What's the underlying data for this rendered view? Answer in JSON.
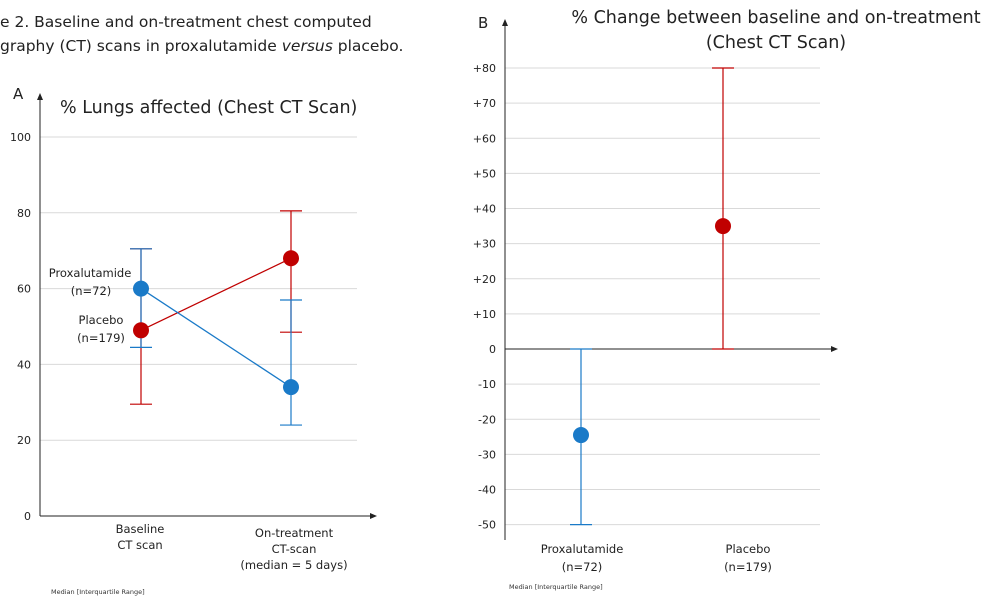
{
  "figure_caption": {
    "line1": "e 2. Baseline and on-treatment chest computed",
    "line2_pre": "graphy (CT) scans in proxalutamide ",
    "line2_italic": "versus",
    "line2_post": " placebo."
  },
  "colors": {
    "proxalutamide": "#1a7ac8",
    "placebo": "#c00000",
    "grid": "#d9d9d9",
    "axis": "#222222"
  },
  "chart_data": [
    {
      "type": "scatter",
      "panel_letter": "A",
      "title": "% Lungs affected (Chest CT Scan)",
      "xlabel": "",
      "ylabel": "",
      "categories": [
        [
          "Baseline",
          "CT scan"
        ],
        [
          "On-treatment",
          "CT-scan",
          "(median = 5 days)"
        ]
      ],
      "ylim": [
        0,
        100
      ],
      "yticks": [
        "0",
        "20",
        "40",
        "60",
        "80",
        "100"
      ],
      "grid": true,
      "series": [
        {
          "name": "Proxalutamide",
          "n_label": "(n=72)",
          "color_key": "proxalutamide",
          "median": [
            60,
            34
          ],
          "iqr_low": [
            44.5,
            24
          ],
          "iqr_high": [
            70.5,
            57
          ]
        },
        {
          "name": "Placebo",
          "n_label": "(n=179)",
          "color_key": "placebo",
          "median": [
            49,
            68
          ],
          "iqr_low": [
            29.5,
            48.5
          ],
          "iqr_high": [
            70.5,
            80.5
          ]
        }
      ],
      "footnote": "Median [Interquartile Range]"
    },
    {
      "type": "scatter",
      "panel_letter": "B",
      "title": "% Change between baseline and on-treatment",
      "subtitle": "(Chest CT Scan)",
      "xlabel": "",
      "ylabel": "",
      "categories": [
        [
          "Proxalutamide",
          "(n=72)"
        ],
        [
          "Placebo",
          "(n=179)"
        ]
      ],
      "ylim": [
        -50,
        80
      ],
      "yticks": [
        "-50",
        "-40",
        "-30",
        "-20",
        "-10",
        "0",
        "+10",
        "+20",
        "+30",
        "+40",
        "+50",
        "+60",
        "+70",
        "+80"
      ],
      "grid": true,
      "series": [
        {
          "name": "Proxalutamide",
          "color_key": "proxalutamide",
          "median": 24.5,
          "median_sign": -1,
          "iqr_low": -50,
          "iqr_high": 0
        },
        {
          "name": "Placebo",
          "color_key": "placebo",
          "median": 35,
          "median_sign": 1,
          "iqr_low": 0,
          "iqr_high": 80
        }
      ],
      "footnote": "Median [Interquartile Range]"
    }
  ]
}
